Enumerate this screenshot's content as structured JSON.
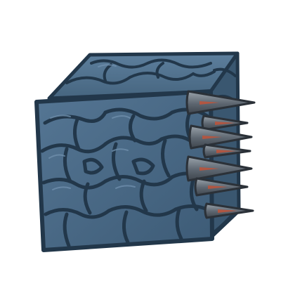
{
  "sprite": {
    "subject": "spiked-stone-block",
    "icon": "spiked-cube-icon",
    "colors": {
      "background": "#ffffff",
      "stone_fill": "#4a6a86",
      "stone_dark": "#2a4257",
      "stone_outline": "#22374a",
      "stone_highlight": "#6f8fac",
      "spike_fill": "#5d6670",
      "spike_light": "#9aa3ab",
      "spike_outline": "#2b3138",
      "spike_blood": "#c0543a"
    },
    "spike_count": 7
  }
}
